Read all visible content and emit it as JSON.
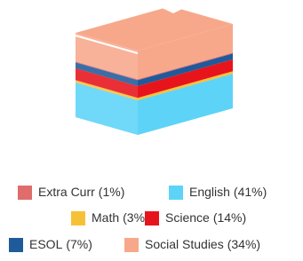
{
  "chart_data": {
    "type": "book-stack",
    "categories": [
      "English",
      "Math",
      "Science",
      "ESOL",
      "Extra Curr",
      "Social Studies"
    ],
    "values": [
      41,
      3,
      14,
      7,
      1,
      34
    ],
    "value_labels": [
      "(41%)",
      "(3%)",
      "(14%)",
      "(7%)",
      "(1%)",
      "(34%)"
    ],
    "colors": [
      "#5dd3f7",
      "#f7c137",
      "#e8141c",
      "#1f5a9b",
      "#e06c6c",
      "#f7a88b"
    ]
  }
}
